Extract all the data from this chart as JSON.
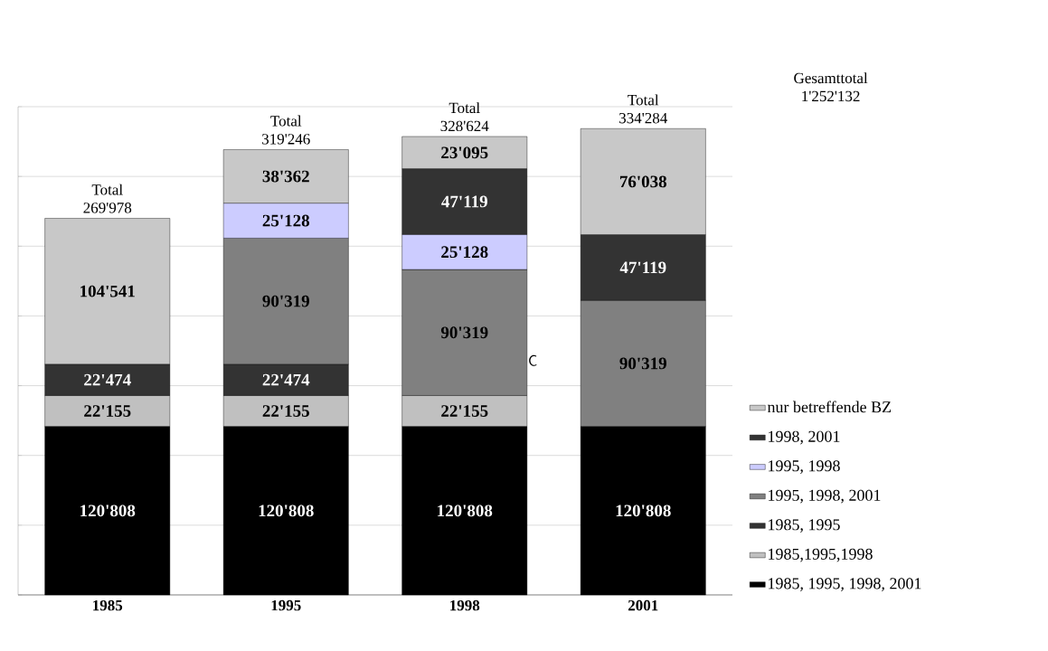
{
  "chart_data": {
    "type": "bar",
    "stacked": true,
    "categories": [
      "1985",
      "1995",
      "1998",
      "2001"
    ],
    "series": [
      {
        "name": "1985, 1995, 1998, 2001",
        "color": "#000000",
        "values": [
          120808,
          120808,
          120808,
          120808
        ],
        "value_labels": [
          "120'808",
          "120'808",
          "120'808",
          "120'808"
        ]
      },
      {
        "name": "1985,1995,1998",
        "color": "#c0c0c0",
        "values": [
          22155,
          22155,
          22155,
          null
        ],
        "value_labels": [
          "22'155",
          "22'155",
          "22'155",
          null
        ]
      },
      {
        "name": "1985, 1995",
        "color": "#333333",
        "values": [
          22474,
          22474,
          null,
          null
        ],
        "value_labels": [
          "22'474",
          "22'474",
          null,
          null
        ]
      },
      {
        "name": "1995, 1998, 2001",
        "color": "#808080",
        "values": [
          null,
          90319,
          90319,
          90319
        ],
        "value_labels": [
          null,
          "90'319",
          "90'319",
          "90'319"
        ]
      },
      {
        "name": "1995, 1998",
        "color": "#ccccff",
        "values": [
          null,
          25128,
          25128,
          null
        ],
        "value_labels": [
          null,
          "25'128",
          "25'128",
          null
        ]
      },
      {
        "name": "1998, 2001",
        "color": "#333333",
        "values": [
          null,
          null,
          47119,
          47119
        ],
        "value_labels": [
          null,
          null,
          "47'119",
          "47'119"
        ]
      },
      {
        "name": "nur betreffende BZ",
        "color": "#c8c8c8",
        "values": [
          104541,
          38362,
          23095,
          76038
        ],
        "value_labels": [
          "104'541",
          "38'362",
          "23'095",
          "76'038"
        ]
      }
    ],
    "totals": [
      "Total 269'978",
      "Total 319'246",
      "Total 328'624",
      "Total 334'284"
    ],
    "annotations": [
      "Gesamttotal 1'252'132",
      "C"
    ],
    "ylim": [
      0,
      350000
    ],
    "yticks": [
      {
        "value": 0,
        "label": null
      },
      {
        "value": 50000,
        "label": null
      },
      {
        "value": 100000,
        "label": null
      },
      {
        "value": 150000,
        "label": null
      },
      {
        "value": 200000,
        "label": null
      },
      {
        "value": 250000,
        "label": null
      },
      {
        "value": 300000,
        "label": null
      },
      {
        "value": 350000,
        "label": null
      }
    ],
    "tick_labels": "x",
    "grid": "y",
    "legend": "right"
  }
}
